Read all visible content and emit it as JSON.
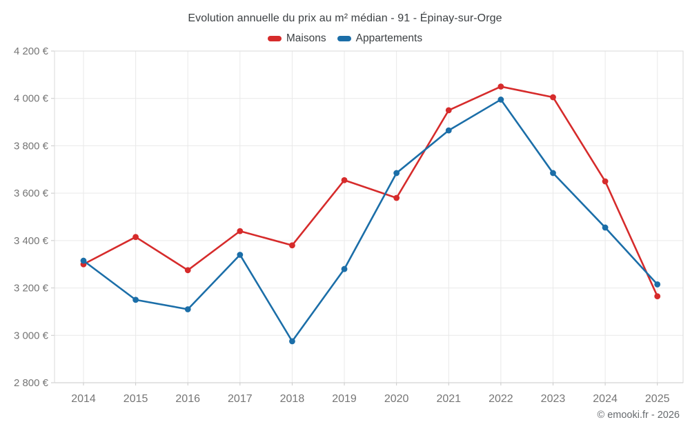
{
  "header": {
    "title": "Evolution annuelle du prix au m² médian - 91 - Épinay-sur-Orge"
  },
  "footer": {
    "copyright": "© emooki.fr - 2026"
  },
  "chart_data": {
    "type": "line",
    "title": "Evolution annuelle du prix au m² médian - 91 - Épinay-sur-Orge",
    "x_labels": [
      "2014",
      "2015",
      "2016",
      "2017",
      "2018",
      "2019",
      "2020",
      "2021",
      "2022",
      "2023",
      "2024",
      "2025"
    ],
    "series": [
      {
        "name": "Maisons",
        "color": "#d62b2b",
        "values": [
          3300,
          3415,
          3275,
          3440,
          3380,
          3655,
          3580,
          3950,
          4050,
          4005,
          3650,
          3165
        ]
      },
      {
        "name": "Appartements",
        "color": "#1b6ea8",
        "values": [
          3315,
          3150,
          3110,
          3340,
          2975,
          3280,
          3685,
          3865,
          3995,
          3685,
          3455,
          3215
        ]
      }
    ],
    "ylabel": "",
    "xlabel": "",
    "ylim": [
      2800,
      4200
    ],
    "y_ticks": [
      {
        "value": 2800,
        "label": "2 800 €"
      },
      {
        "value": 3000,
        "label": "3 000 €"
      },
      {
        "value": 3200,
        "label": "3 200 €"
      },
      {
        "value": 3400,
        "label": "3 400 €"
      },
      {
        "value": 3600,
        "label": "3 600 €"
      },
      {
        "value": 3800,
        "label": "3 800 €"
      },
      {
        "value": 4000,
        "label": "4 000 €"
      },
      {
        "value": 4200,
        "label": "4 200 €"
      }
    ],
    "grid": true,
    "legend_position": "top"
  },
  "colors": {
    "grid": "#e9e9e9",
    "border": "#dadada",
    "axis": "#c9c9c9",
    "tick_label": "#757575"
  }
}
